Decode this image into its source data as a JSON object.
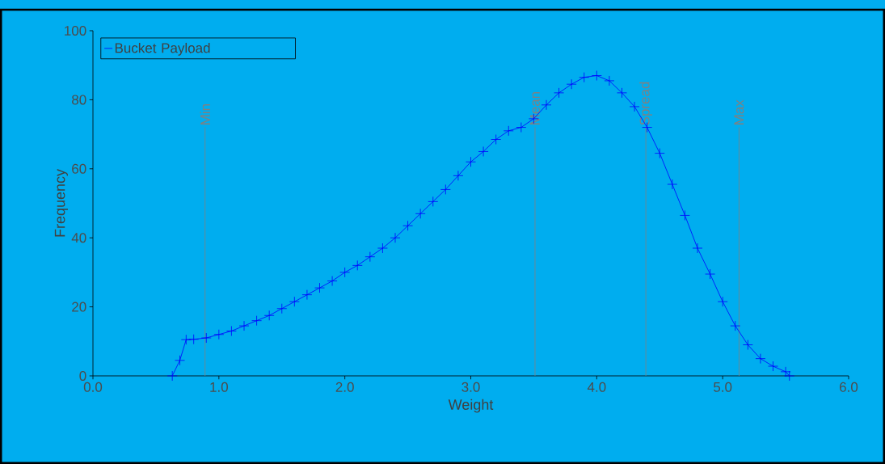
{
  "chart_data": {
    "type": "line",
    "xlabel": "Weight",
    "ylabel": "Frequency",
    "xlim": [
      0,
      6
    ],
    "ylim": [
      0,
      100
    ],
    "xticks": [
      {
        "value": 0,
        "label": "0.0"
      },
      {
        "value": 1,
        "label": "1.0"
      },
      {
        "value": 2,
        "label": "2.0"
      },
      {
        "value": 3,
        "label": "3.0"
      },
      {
        "value": 4,
        "label": "4.0"
      },
      {
        "value": 5,
        "label": "5.0"
      },
      {
        "value": 6,
        "label": "6.0"
      }
    ],
    "yticks": [
      0,
      20,
      40,
      60,
      80,
      100
    ],
    "x": [
      0.63,
      0.69,
      0.74,
      0.8,
      0.9,
      1.0,
      1.1,
      1.2,
      1.3,
      1.4,
      1.5,
      1.6,
      1.7,
      1.8,
      1.9,
      2.0,
      2.1,
      2.2,
      2.3,
      2.4,
      2.5,
      2.6,
      2.7,
      2.8,
      2.9,
      3.0,
      3.1,
      3.2,
      3.3,
      3.4,
      3.5,
      3.6,
      3.7,
      3.8,
      3.9,
      4.0,
      4.1,
      4.2,
      4.3,
      4.4,
      4.5,
      4.6,
      4.7,
      4.8,
      4.9,
      5.0,
      5.1,
      5.2,
      5.3,
      5.4,
      5.5,
      5.53
    ],
    "series": [
      {
        "name": "Bucket Payload",
        "color": "#0000ff",
        "values": [
          0,
          4.5,
          10.5,
          10.6,
          11,
          12,
          13,
          14.5,
          16,
          17.5,
          19.5,
          21.5,
          23.5,
          25.5,
          27.5,
          30,
          32,
          34.5,
          37,
          40,
          43.5,
          47,
          50.5,
          54,
          58,
          62,
          65,
          68.5,
          71,
          72,
          74.5,
          78.5,
          82,
          84.5,
          86.5,
          87,
          85.5,
          82,
          78,
          72,
          64.5,
          55.5,
          46.5,
          37,
          29.5,
          21.5,
          14.5,
          9,
          5,
          2.8,
          1.2,
          0
        ]
      }
    ],
    "marker": "cross",
    "legend": "top left",
    "grid": false,
    "ref_lines": [
      {
        "axis": "x",
        "value": 0.89,
        "label": "Min",
        "color": "#808080"
      },
      {
        "axis": "x",
        "value": 3.51,
        "label": "Mean",
        "color": "#808080"
      },
      {
        "axis": "x",
        "value": 4.39,
        "label": "Spread",
        "color": "#808080"
      },
      {
        "axis": "x",
        "value": 5.13,
        "label": "Max",
        "color": "#808080"
      }
    ]
  }
}
